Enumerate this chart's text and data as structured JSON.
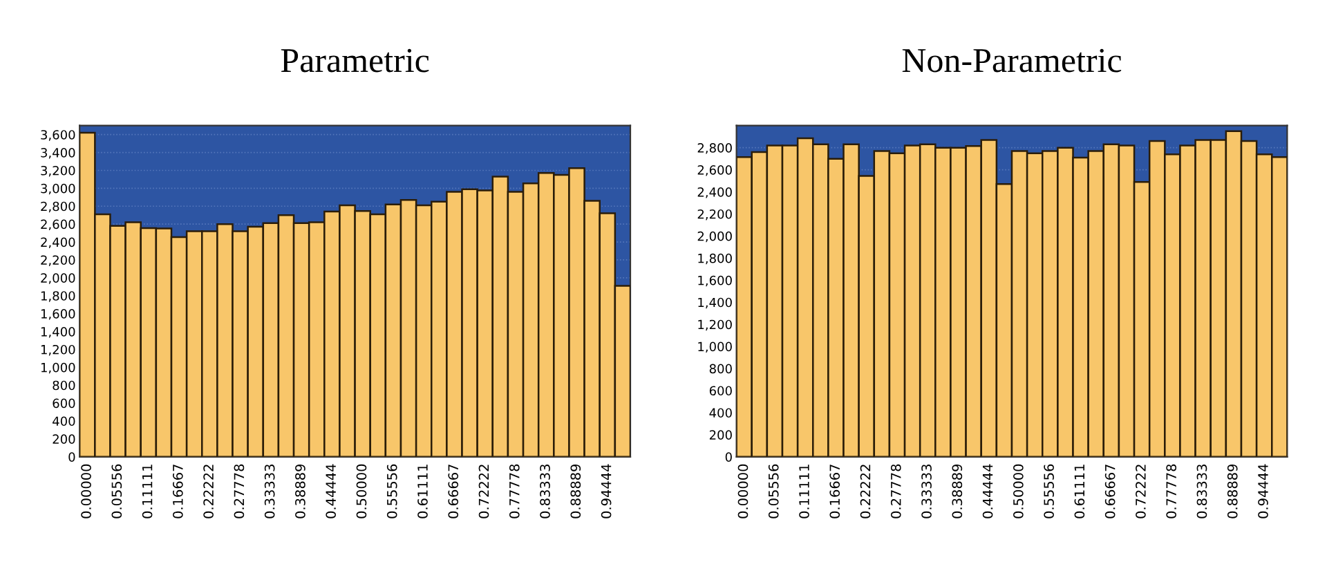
{
  "chart_data": [
    {
      "type": "bar",
      "title": "Parametric",
      "categories": [
        "0.00000",
        null,
        "0.05556",
        null,
        "0.11111",
        null,
        "0.16667",
        null,
        "0.22222",
        null,
        "0.27778",
        null,
        "0.33333",
        null,
        "0.38889",
        null,
        "0.44444",
        null,
        "0.50000",
        null,
        "0.55556",
        null,
        "0.61111",
        null,
        "0.66667",
        null,
        "0.72222",
        null,
        "0.77778",
        null,
        "0.83333",
        null,
        "0.88889",
        null,
        "0.94444",
        null
      ],
      "series": [
        {
          "color": "#f8c66a",
          "values": [
            3620,
            2710,
            2580,
            2620,
            2555,
            2550,
            2455,
            2520,
            2520,
            2600,
            2520,
            2570,
            2610,
            2700,
            2610,
            2620,
            2740,
            2810,
            2745,
            2710,
            2820,
            2870,
            2810,
            2850,
            2960,
            2990,
            2975,
            3130,
            2960,
            3055,
            3170,
            3150,
            3225,
            2860,
            2720,
            1910
          ]
        }
      ],
      "ylim": [
        0,
        3700
      ],
      "yticks": [
        0,
        200,
        400,
        600,
        800,
        {
          "value": 1000,
          "label": "1,000"
        },
        {
          "value": 1200,
          "label": "1,200"
        },
        {
          "value": 1400,
          "label": "1,400"
        },
        {
          "value": 1600,
          "label": "1,600"
        },
        {
          "value": 1800,
          "label": "1,800"
        },
        {
          "value": 2000,
          "label": "2,000"
        },
        {
          "value": 2200,
          "label": "2,200"
        },
        {
          "value": 2400,
          "label": "2,400"
        },
        {
          "value": 2600,
          "label": "2,600"
        },
        {
          "value": 2800,
          "label": "2,800"
        },
        {
          "value": 3000,
          "label": "3,000"
        },
        {
          "value": 3200,
          "label": "3,200"
        },
        {
          "value": 3400,
          "label": "3,400"
        },
        {
          "value": 3600,
          "label": "3,600"
        }
      ],
      "grid": "y"
    },
    {
      "type": "bar",
      "title": "Non-Parametric",
      "categories": [
        "0.00000",
        null,
        "0.05556",
        null,
        "0.11111",
        null,
        "0.16667",
        null,
        "0.22222",
        null,
        "0.27778",
        null,
        "0.33333",
        null,
        "0.38889",
        null,
        "0.44444",
        null,
        "0.50000",
        null,
        "0.55556",
        null,
        "0.61111",
        null,
        "0.66667",
        null,
        "0.72222",
        null,
        "0.77778",
        null,
        "0.83333",
        null,
        "0.88889",
        null,
        "0.94444",
        null
      ],
      "series": [
        {
          "color": "#f8c66a",
          "values": [
            2715,
            2760,
            2820,
            2820,
            2885,
            2830,
            2700,
            2830,
            2545,
            2770,
            2750,
            2820,
            2830,
            2800,
            2800,
            2815,
            2870,
            2470,
            2770,
            2750,
            2770,
            2800,
            2710,
            2770,
            2830,
            2820,
            2490,
            2860,
            2740,
            2820,
            2870,
            2870,
            2950,
            2860,
            2740,
            2715
          ]
        }
      ],
      "ylim": [
        0,
        3000
      ],
      "yticks": [
        0,
        200,
        400,
        600,
        800,
        {
          "value": 1000,
          "label": "1,000"
        },
        {
          "value": 1200,
          "label": "1,200"
        },
        {
          "value": 1400,
          "label": "1,400"
        },
        {
          "value": 1600,
          "label": "1,600"
        },
        {
          "value": 1800,
          "label": "1,800"
        },
        {
          "value": 2000,
          "label": "2,000"
        },
        {
          "value": 2200,
          "label": "2,200"
        },
        {
          "value": 2400,
          "label": "2,400"
        },
        {
          "value": 2600,
          "label": "2,600"
        },
        {
          "value": 2800,
          "label": "2,800"
        }
      ],
      "grid": "y"
    }
  ]
}
